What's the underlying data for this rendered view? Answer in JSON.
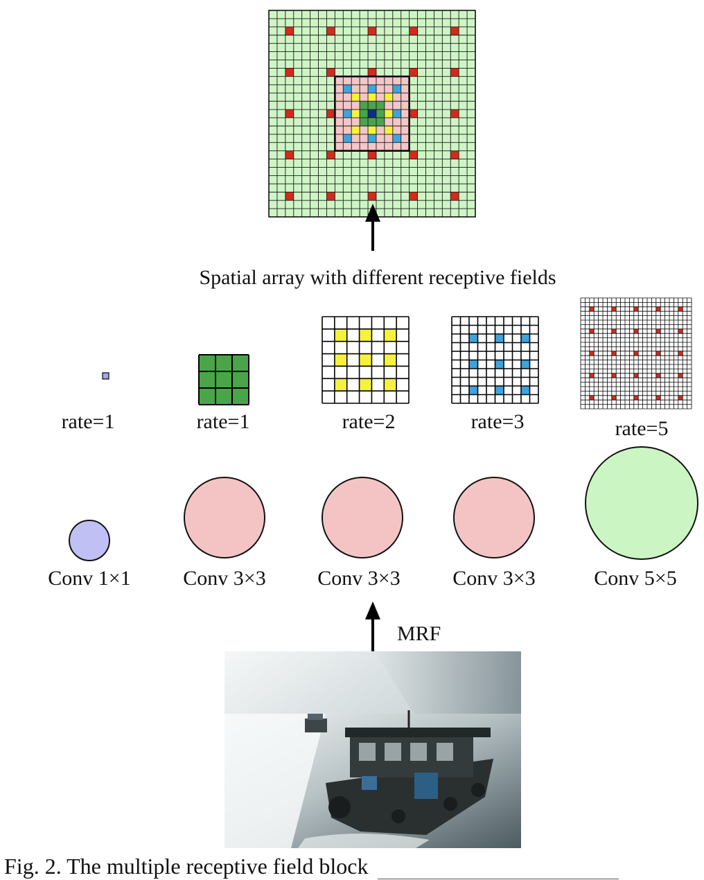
{
  "diagram": {
    "spatial_label": "Spatial array with different receptive fields",
    "mrf_label": "MRF",
    "caption": "Fig. 2. The multiple receptive field block",
    "branches": [
      {
        "rate": "rate=1",
        "conv": "Conv 1×1",
        "circle_color": "#c0c0f4",
        "cell_color": "#a5a5e0"
      },
      {
        "rate": "rate=1",
        "conv": "Conv 3×3",
        "circle_color": "#f4c4c4",
        "cell_color": "#4aa54a"
      },
      {
        "rate": "rate=2",
        "conv": "Conv 3×3",
        "circle_color": "#f4c4c4",
        "cell_color": "#f5f23c"
      },
      {
        "rate": "rate=3",
        "conv": "Conv 3×3",
        "circle_color": "#f4c4c4",
        "cell_color": "#3fa3dc"
      },
      {
        "rate": "rate=5",
        "conv": "Conv 5×5",
        "circle_color": "#ccf5c4",
        "cell_color": "#d42a1a"
      }
    ],
    "colors": {
      "big_grid_bg": "#cff5c6",
      "inner_grid_bg": "#f4c6c6",
      "center_green": "#4aa54a",
      "center_dark": "#0a2f8a",
      "red": "#d42a1a",
      "blue": "#3fa3dc",
      "yellow": "#f5f23c"
    }
  }
}
